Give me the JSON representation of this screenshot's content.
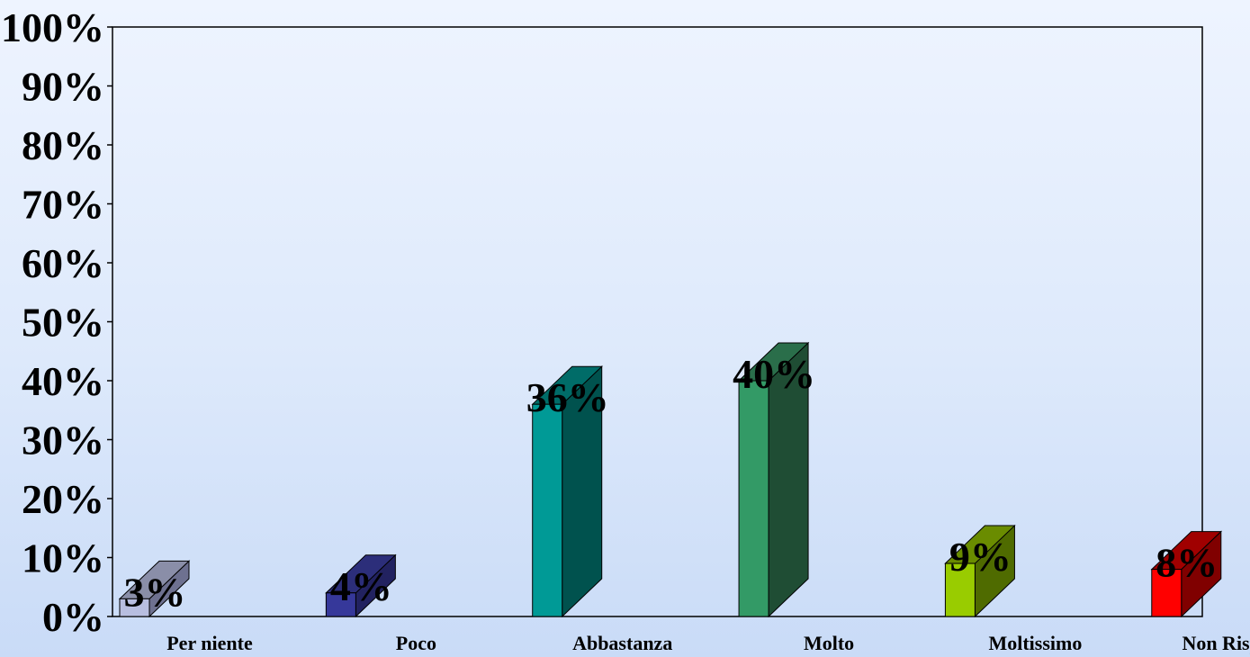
{
  "chart_data": {
    "type": "bar",
    "title": "",
    "xlabel": "",
    "ylabel": "",
    "ylim": [
      0,
      100
    ],
    "grid": false,
    "legend": "none",
    "categories": [
      "Per niente",
      "Poco",
      "Abbastanza",
      "Molto",
      "Moltissimo",
      "Non Risponde"
    ],
    "values": [
      3,
      4,
      36,
      40,
      9,
      8
    ],
    "data_labels": [
      "3%",
      "4%",
      "36%",
      "40%",
      "9%",
      "8%"
    ],
    "y_ticks": [
      0,
      10,
      20,
      30,
      40,
      50,
      60,
      70,
      80,
      90,
      100
    ],
    "y_tick_labels": [
      "0%",
      "10%",
      "20%",
      "30%",
      "40%",
      "50%",
      "60%",
      "70%",
      "80%",
      "90%",
      "100%"
    ],
    "colors": [
      {
        "front": "#b8bee0",
        "side": "#6e7190",
        "top": "#8a8ea8"
      },
      {
        "front": "#36389a",
        "side": "#222260",
        "top": "#2c2e7a"
      },
      {
        "front": "#009a96",
        "side": "#00524e",
        "top": "#006c68"
      },
      {
        "front": "#339a66",
        "side": "#1f4d34",
        "top": "#2a6e4a"
      },
      {
        "front": "#99cc00",
        "side": "#4f6b00",
        "top": "#6a8c00"
      },
      {
        "front": "#ff0000",
        "side": "#800000",
        "top": "#a00000"
      }
    ]
  }
}
